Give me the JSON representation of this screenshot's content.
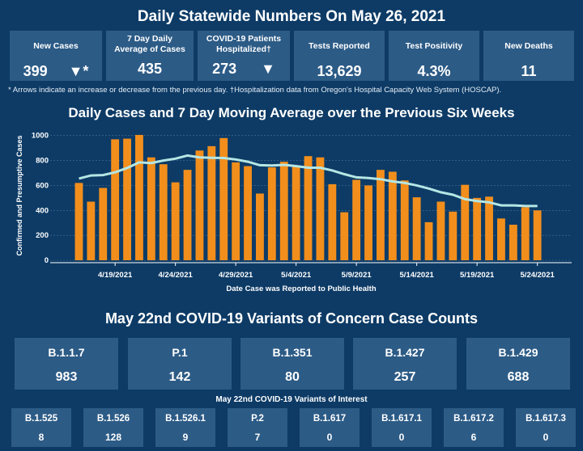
{
  "header": {
    "title": "Daily Statewide Numbers On May 26, 2021"
  },
  "stats": [
    {
      "label": "New Cases",
      "value": "399",
      "marker": "▼*",
      "color": "#2c5b86"
    },
    {
      "label": "7 Day Daily Average of Cases",
      "value": "435",
      "marker": "",
      "color": "#2c5b86"
    },
    {
      "label": "COVID-19 Patients Hospitalized†",
      "value": "273",
      "marker": "▼",
      "color": "#2c5b86"
    },
    {
      "label": "Tests Reported",
      "value": "13,629",
      "marker": "",
      "color": "#2c5b86"
    },
    {
      "label": "Test Positivity",
      "value": "4.3%",
      "marker": "",
      "color": "#2c5b86"
    },
    {
      "label": "New Deaths",
      "value": "11",
      "marker": "",
      "color": "#2c5b86"
    }
  ],
  "footnote": "* Arrows indicate an increase or decrease from the previous day. †Hospitalization data from Oregon's Hospital Capacity Web System (HOSCAP).",
  "chart_title": "Daily Cases and 7 Day Moving Average over the Previous Six Weeks",
  "chart_data": {
    "type": "bar",
    "title": "Daily Cases and 7 Day Moving Average over the Previous Six Weeks",
    "xlabel": "Date Case was Reported to Public Health",
    "ylabel": "Confirmed and Presumptive Cases",
    "ylim": [
      0,
      1050
    ],
    "yticks": [
      0,
      200,
      400,
      600,
      800,
      1000
    ],
    "xtick_labels": [
      "4/19/2021",
      "4/24/2021",
      "4/29/2021",
      "5/4/2021",
      "5/9/2021",
      "5/14/2021",
      "5/19/2021",
      "5/24/2021"
    ],
    "xtick_index": [
      3,
      8,
      13,
      18,
      23,
      28,
      33,
      38
    ],
    "dates": [
      "4/16/2021",
      "4/17/2021",
      "4/18/2021",
      "4/19/2021",
      "4/20/2021",
      "4/21/2021",
      "4/22/2021",
      "4/23/2021",
      "4/24/2021",
      "4/25/2021",
      "4/26/2021",
      "4/27/2021",
      "4/28/2021",
      "4/29/2021",
      "4/30/2021",
      "5/1/2021",
      "5/2/2021",
      "5/3/2021",
      "5/4/2021",
      "5/5/2021",
      "5/6/2021",
      "5/7/2021",
      "5/8/2021",
      "5/9/2021",
      "5/10/2021",
      "5/11/2021",
      "5/12/2021",
      "5/13/2021",
      "5/14/2021",
      "5/15/2021",
      "5/16/2021",
      "5/17/2021",
      "5/18/2021",
      "5/19/2021",
      "5/20/2021",
      "5/21/2021",
      "5/22/2021",
      "5/23/2021",
      "5/24/2021",
      "5/25/2021"
    ],
    "series": [
      {
        "type": "bar",
        "color": "#f28e1c",
        "values": [
          620,
          470,
          580,
          970,
          975,
          1005,
          825,
          770,
          625,
          725,
          880,
          915,
          980,
          785,
          755,
          535,
          745,
          790,
          750,
          835,
          825,
          610,
          385,
          645,
          600,
          725,
          710,
          640,
          505,
          305,
          470,
          390,
          605,
          500,
          510,
          335,
          285,
          425,
          400,
          null
        ]
      },
      {
        "type": "line",
        "color": "#b5e6e4",
        "values": [
          655,
          680,
          683,
          705,
          740,
          785,
          780,
          800,
          815,
          840,
          825,
          822,
          820,
          808,
          790,
          762,
          760,
          765,
          755,
          742,
          742,
          720,
          690,
          665,
          660,
          650,
          632,
          620,
          600,
          575,
          545,
          525,
          490,
          475,
          465,
          440,
          440,
          435,
          435,
          null
        ]
      }
    ],
    "colors": {
      "bar": "#f28e1c",
      "line": "#b5e6e4",
      "grid": "#4a7299",
      "axis": "#ffffff"
    }
  },
  "variants_title": "May 22nd  COVID-19 Variants of Concern Case Counts",
  "variants": [
    {
      "label": "B.1.1.7",
      "value": "983"
    },
    {
      "label": "P.1",
      "value": "142"
    },
    {
      "label": "B.1.351",
      "value": "80"
    },
    {
      "label": "B.1.427",
      "value": "257"
    },
    {
      "label": "B.1.429",
      "value": "688"
    }
  ],
  "interest_title": "May 22nd COVID-19 Variants of Interest",
  "interest": [
    {
      "label": "B.1.525",
      "value": "8"
    },
    {
      "label": "B.1.526",
      "value": "128"
    },
    {
      "label": "B.1.526.1",
      "value": "9"
    },
    {
      "label": "P.2",
      "value": "7"
    },
    {
      "label": "B.1.617",
      "value": "0"
    },
    {
      "label": "B.1.617.1",
      "value": "0"
    },
    {
      "label": "B.1.617.2",
      "value": "6"
    },
    {
      "label": "B.1.617.3",
      "value": "0"
    }
  ]
}
